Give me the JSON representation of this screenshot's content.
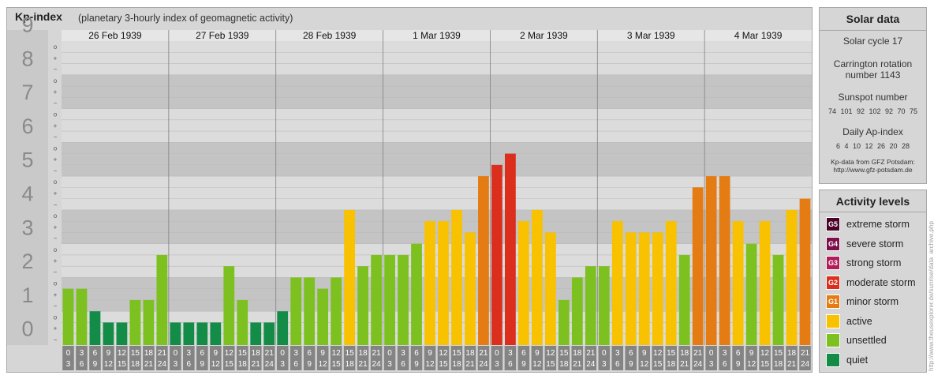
{
  "header": {
    "title": "Kp-index",
    "subtitle": "(planetary 3-hourly index of geomagnetic activity)"
  },
  "chart_data": {
    "type": "bar",
    "title": "Kp-index",
    "subtitle": "(planetary 3-hourly index of geomagnetic activity)",
    "ylim": [
      0,
      9
    ],
    "y_ticks": [
      "0",
      "1",
      "2",
      "3",
      "4",
      "5",
      "6",
      "7",
      "8",
      "9"
    ],
    "minor_tick_labels": [
      "o",
      "+",
      "−"
    ],
    "days": [
      "26 Feb 1939",
      "27 Feb 1939",
      "28 Feb 1939",
      "1 Mar 1939",
      "2 Mar 1939",
      "3 Mar 1939",
      "4 Mar 1939"
    ],
    "slot_labels": [
      [
        "0",
        "3"
      ],
      [
        "3",
        "6"
      ],
      [
        "6",
        "9"
      ],
      [
        "9",
        "12"
      ],
      [
        "12",
        "15"
      ],
      [
        "15",
        "18"
      ],
      [
        "18",
        "21"
      ],
      [
        "21",
        "24"
      ]
    ],
    "values": [
      1.667,
      1.667,
      1.0,
      0.667,
      0.667,
      1.333,
      1.333,
      2.667,
      0.667,
      0.667,
      0.667,
      0.667,
      2.333,
      1.333,
      0.667,
      0.667,
      1.0,
      2.0,
      2.0,
      1.667,
      2.0,
      4.0,
      2.333,
      2.667,
      2.667,
      2.667,
      3.0,
      3.667,
      3.667,
      4.0,
      3.333,
      5.0,
      5.333,
      5.667,
      3.667,
      4.0,
      3.333,
      1.333,
      2.0,
      2.333,
      2.333,
      3.667,
      3.333,
      3.333,
      3.333,
      3.667,
      2.667,
      4.667,
      5.0,
      5.0,
      3.667,
      3.0,
      3.667,
      2.667,
      4.0,
      4.333
    ],
    "color_scale": {
      "quiet": "#138c48",
      "unsettled": "#7cc11f",
      "active": "#f8c200",
      "G1": "#e57c13",
      "G2": "#db2e1c",
      "G3": "#b31c5a",
      "G4": "#7e0e4a",
      "G5": "#4b0228"
    },
    "grid": true,
    "legend_placement": "right"
  },
  "solar": {
    "title": "Solar data",
    "cycle": "Solar cycle 17",
    "carrington_line1": "Carrington rotation",
    "carrington_line2": "number 1143",
    "sunspot_label": "Sunspot number",
    "sunspot_values": "74 101 92 102 92 70 75",
    "ap_label": "Daily Ap-index",
    "ap_values": "6 4 10 12 26 20 28",
    "source_line1": "Kp-data from GFZ Potsdam:",
    "source_line2": "http://www.gfz-potsdam.de"
  },
  "levels": {
    "title": "Activity levels",
    "items": [
      {
        "code": "G5",
        "label": "extreme storm",
        "color": "#4b0228"
      },
      {
        "code": "G4",
        "label": "severe storm",
        "color": "#7e0e4a"
      },
      {
        "code": "G3",
        "label": "strong storm",
        "color": "#b31c5a"
      },
      {
        "code": "G2",
        "label": "moderate storm",
        "color": "#db2e1c"
      },
      {
        "code": "G1",
        "label": "minor storm",
        "color": "#e57c13"
      },
      {
        "code": "",
        "label": "active",
        "color": "#f8c200"
      },
      {
        "code": "",
        "label": "unsettled",
        "color": "#7cc11f"
      },
      {
        "code": "",
        "label": "quiet",
        "color": "#138c48"
      }
    ]
  },
  "credit": "http://www.theusexplorer.de/sunrise/data_archive.php"
}
